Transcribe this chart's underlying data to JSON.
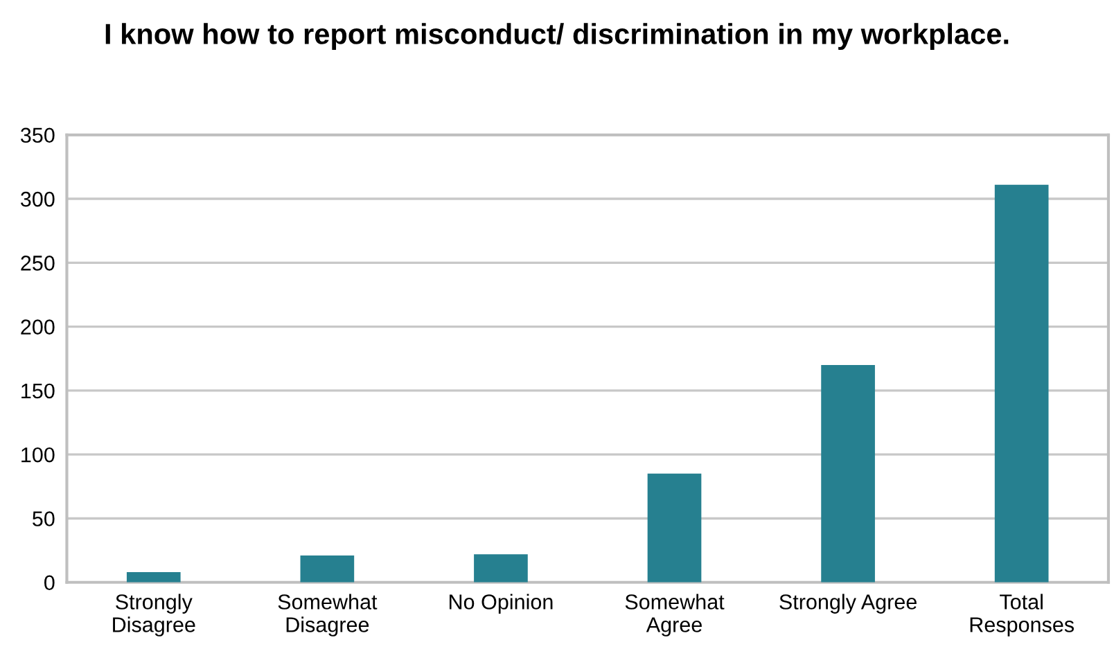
{
  "chart_data": {
    "type": "bar",
    "title": "I know how to report misconduct/ discrimination in my workplace.",
    "categories": [
      "Strongly\nDisagree",
      "Somewhat\nDisagree",
      "No Opinion",
      "Somewhat\nAgree",
      "Strongly Agree",
      "Total\nResponses"
    ],
    "values": [
      8,
      21,
      22,
      85,
      170,
      311
    ],
    "color": "#268090",
    "ylim": [
      0,
      350
    ],
    "yticks": [
      0,
      50,
      100,
      150,
      200,
      250,
      300,
      350
    ],
    "grid": "y"
  }
}
